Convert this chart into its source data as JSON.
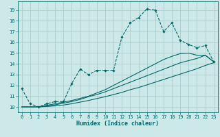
{
  "title": "",
  "xlabel": "Humidex (Indice chaleur)",
  "ylabel": "",
  "bg_color": "#cde8e8",
  "line_color": "#006666",
  "grid_color": "#aacccc",
  "xlim": [
    -0.5,
    23.5
  ],
  "ylim": [
    9.5,
    19.8
  ],
  "xticks": [
    0,
    1,
    2,
    3,
    4,
    5,
    6,
    7,
    8,
    9,
    10,
    11,
    12,
    13,
    14,
    15,
    16,
    17,
    18,
    19,
    20,
    21,
    22,
    23
  ],
  "yticks": [
    10,
    11,
    12,
    13,
    14,
    15,
    16,
    17,
    18,
    19
  ],
  "curve1_x": [
    0,
    1,
    2,
    3,
    4,
    5,
    6,
    7,
    8,
    9,
    10,
    11,
    12,
    13,
    14,
    15,
    16,
    17,
    18,
    19,
    20,
    21,
    22,
    23
  ],
  "curve1_y": [
    11.7,
    10.3,
    10.0,
    10.3,
    10.5,
    10.5,
    12.2,
    13.5,
    13.0,
    13.4,
    13.4,
    13.4,
    16.5,
    17.8,
    18.3,
    19.1,
    19.0,
    17.0,
    17.8,
    16.2,
    15.8,
    15.5,
    15.7,
    14.2
  ],
  "curve2_x": [
    0,
    1,
    2,
    3,
    4,
    5,
    6,
    7,
    8,
    9,
    10,
    11,
    12,
    13,
    14,
    15,
    16,
    17,
    18,
    19,
    20,
    21,
    22,
    23
  ],
  "curve2_y": [
    10.0,
    10.0,
    10.0,
    10.15,
    10.3,
    10.45,
    10.6,
    10.8,
    11.0,
    11.3,
    11.6,
    12.0,
    12.4,
    12.8,
    13.2,
    13.6,
    14.0,
    14.4,
    14.7,
    14.95,
    15.0,
    14.8,
    14.8,
    14.2
  ],
  "curve3_x": [
    0,
    1,
    2,
    3,
    4,
    5,
    6,
    7,
    8,
    9,
    10,
    11,
    12,
    13,
    14,
    15,
    16,
    17,
    18,
    19,
    20,
    21,
    22,
    23
  ],
  "curve3_y": [
    10.0,
    10.0,
    10.0,
    10.1,
    10.2,
    10.35,
    10.5,
    10.7,
    10.95,
    11.15,
    11.4,
    11.7,
    12.0,
    12.3,
    12.6,
    12.9,
    13.2,
    13.5,
    13.8,
    14.1,
    14.3,
    14.5,
    14.8,
    14.2
  ],
  "curve4_x": [
    0,
    1,
    2,
    3,
    4,
    5,
    6,
    7,
    8,
    9,
    10,
    11,
    12,
    13,
    14,
    15,
    16,
    17,
    18,
    19,
    20,
    21,
    22,
    23
  ],
  "curve4_y": [
    10.0,
    10.0,
    10.0,
    10.05,
    10.1,
    10.18,
    10.3,
    10.45,
    10.6,
    10.78,
    10.95,
    11.15,
    11.35,
    11.6,
    11.8,
    12.05,
    12.3,
    12.55,
    12.8,
    13.05,
    13.3,
    13.55,
    13.85,
    14.1
  ]
}
